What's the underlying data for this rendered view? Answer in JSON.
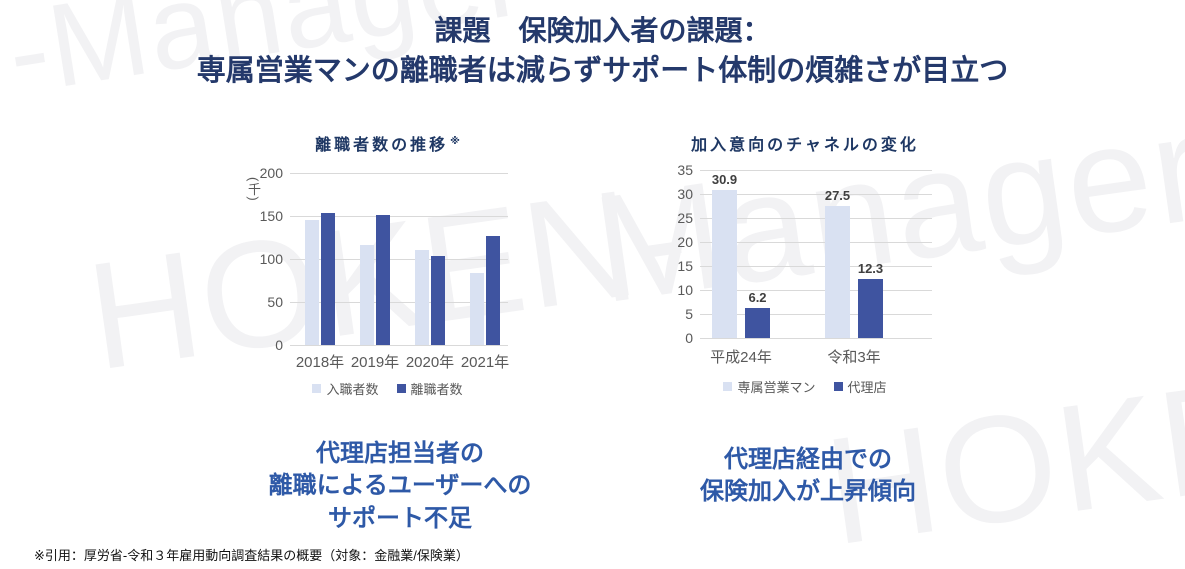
{
  "watermark": {
    "brand": "HOKEN-Manager",
    "color": "#f2f2f4",
    "fragments": [
      {
        "text": "-Manager"
      },
      {
        "text": "HOKEN-"
      },
      {
        "text": "Manager"
      },
      {
        "text": "HOKEN-"
      }
    ]
  },
  "header": {
    "title_line1": "課題　保険加入者の課題：",
    "title_line2": "専属営業マンの離職者は減らずサポート体制の煩雑さが目立つ",
    "color": "#24396b"
  },
  "chart_data": [
    {
      "type": "bar",
      "title": "離職者数の推移",
      "title_note": "※",
      "ylabel": "(千)",
      "categories": [
        "2018年",
        "2019年",
        "2020年",
        "2021年"
      ],
      "series": [
        {
          "name": "入職者数",
          "color": "#d9e1f2",
          "values": [
            145,
            116,
            110,
            84
          ]
        },
        {
          "name": "離職者数",
          "color": "#3f54a0",
          "values": [
            154,
            151,
            104,
            127
          ]
        }
      ],
      "ylim": [
        0,
        200
      ],
      "yticks": [
        0,
        50,
        100,
        150,
        200
      ],
      "grid": true,
      "legend_position": "bottom",
      "data_labels": false
    },
    {
      "type": "bar",
      "title": "加入意向のチャネルの変化",
      "categories": [
        "平成24年",
        "令和3年"
      ],
      "series": [
        {
          "name": "専属営業マン",
          "color": "#d9e1f2",
          "values": [
            30.9,
            27.5
          ]
        },
        {
          "name": "代理店",
          "color": "#3f54a0",
          "values": [
            6.2,
            12.3
          ]
        }
      ],
      "ylim": [
        0,
        35
      ],
      "yticks": [
        0,
        5,
        10,
        15,
        20,
        25,
        30,
        35
      ],
      "grid": true,
      "legend_position": "bottom",
      "data_labels": true
    }
  ],
  "insights": {
    "color": "#2e59a7",
    "left_lines": [
      "代理店担当者の",
      "離職によるユーザーへの",
      "サポート不足"
    ],
    "right_lines": [
      "代理店経由での",
      "保険加入が上昇傾向"
    ]
  },
  "footer": {
    "source_note": "※引用：厚労省-令和３年雇用動向調査結果の概要（対象：金融業/保険業）"
  }
}
